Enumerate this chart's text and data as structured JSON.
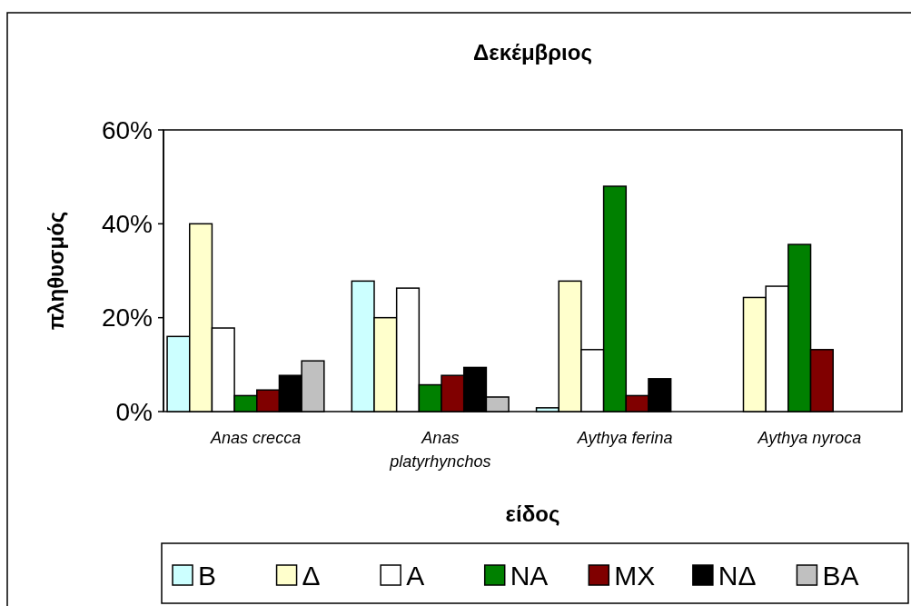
{
  "chart_data": {
    "type": "bar",
    "title": "Δεκέμβριος",
    "xlabel": "είδος",
    "ylabel": "πληθυσμός",
    "categories": [
      "Anas crecca",
      "Anas platyrhynchos",
      "Aythya ferina",
      "Aythya nyroca"
    ],
    "series": [
      {
        "name": "B",
        "color": "#ccffff",
        "values": [
          16,
          27.8,
          0.8,
          0
        ]
      },
      {
        "name": "Δ",
        "color": "#ffffcc",
        "values": [
          40,
          20,
          27.8,
          24.3
        ]
      },
      {
        "name": "A",
        "color": "#ffffff",
        "values": [
          17.8,
          26.3,
          13.2,
          26.7
        ]
      },
      {
        "name": "NA",
        "color": "#008000",
        "values": [
          3.4,
          5.7,
          48,
          35.6
        ]
      },
      {
        "name": "MX",
        "color": "#800000",
        "values": [
          4.6,
          7.7,
          3.4,
          13.2
        ]
      },
      {
        "name": "NΔ",
        "color": "#000000",
        "values": [
          7.7,
          9.4,
          7,
          0
        ]
      },
      {
        "name": "BA",
        "color": "#c0c0c0",
        "values": [
          10.8,
          3.1,
          0,
          0
        ]
      }
    ],
    "ylim": [
      0,
      60
    ],
    "yticks": [
      {
        "value": 0,
        "label": "0%"
      },
      {
        "value": 20,
        "label": "20%"
      },
      {
        "value": 40,
        "label": "40%"
      },
      {
        "value": 60,
        "label": "60%"
      }
    ],
    "grid": false,
    "legend": "bottom"
  }
}
